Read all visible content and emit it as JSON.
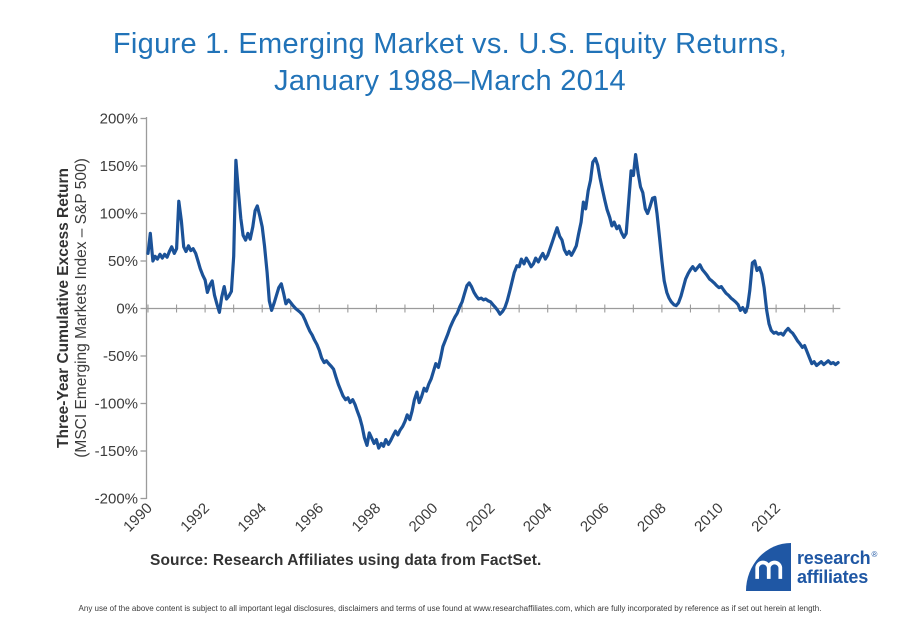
{
  "figure": {
    "title_line1": "Figure 1. Emerging Market vs. U.S. Equity Returns,",
    "title_line2": "January 1988–March 2014",
    "source": "Source: Research Affiliates using data from FactSet.",
    "disclaimer": "Any use of the above content is subject to all important legal disclosures, disclaimers and terms of use found at www.researchaffiliates.com, which are fully incorporated by reference as if set out herein at length.",
    "title_color": "#2173b8"
  },
  "logo": {
    "word1": "research",
    "word2": "affiliates",
    "registered_mark": "®",
    "color": "#1f57a4"
  },
  "chart_data": {
    "type": "line",
    "title": "Figure 1. Emerging Market vs. U.S. Equity Returns, January 1988–March 2014",
    "ylabel_line1": "Three-Year Cumulative Excess Return",
    "ylabel_line2": "(MSCI Emerging Markets Index – S&P 500)",
    "ylim": [
      -200,
      200
    ],
    "y_tick_values": [
      200,
      150,
      100,
      50,
      0,
      -50,
      -100,
      -150,
      -200
    ],
    "y_tick_labels": [
      "200%",
      "150%",
      "100%",
      "50%",
      "0%",
      "-50%",
      "-100%",
      "-150%",
      "-200%"
    ],
    "x_tick_values": [
      1990,
      1992,
      1994,
      1996,
      1998,
      2000,
      2002,
      2004,
      2006,
      2008,
      2010,
      2012
    ],
    "x_tick_labels": [
      "1990",
      "1992",
      "1994",
      "1996",
      "1998",
      "2000",
      "2002",
      "2004",
      "2006",
      "2008",
      "2010",
      "2012"
    ],
    "x_minor_tick_interval": 1,
    "x_range": [
      1990,
      2014.25
    ],
    "grid": "off",
    "legend": "none",
    "line_color": "#1b5298",
    "axis_color": "#9b9b9b",
    "tick_label_color": "#3c3c3c",
    "series": [
      {
        "name": "3-Year Cumulative Excess Return (%), MSCI Emerging Markets Index minus S&P 500",
        "points": [
          [
            1990.0,
            58
          ],
          [
            1990.08,
            79
          ],
          [
            1990.17,
            50
          ],
          [
            1990.25,
            55
          ],
          [
            1990.33,
            52
          ],
          [
            1990.42,
            57
          ],
          [
            1990.5,
            53
          ],
          [
            1990.58,
            57
          ],
          [
            1990.67,
            54
          ],
          [
            1990.75,
            60
          ],
          [
            1990.83,
            65
          ],
          [
            1990.92,
            58
          ],
          [
            1991.0,
            63
          ],
          [
            1991.08,
            113
          ],
          [
            1991.17,
            92
          ],
          [
            1991.25,
            65
          ],
          [
            1991.33,
            60
          ],
          [
            1991.42,
            66
          ],
          [
            1991.5,
            61
          ],
          [
            1991.58,
            63
          ],
          [
            1991.67,
            58
          ],
          [
            1991.75,
            50
          ],
          [
            1991.83,
            42
          ],
          [
            1991.92,
            35
          ],
          [
            1992.0,
            30
          ],
          [
            1992.08,
            17
          ],
          [
            1992.17,
            25
          ],
          [
            1992.25,
            29
          ],
          [
            1992.33,
            14
          ],
          [
            1992.42,
            4
          ],
          [
            1992.5,
            -4
          ],
          [
            1992.58,
            12
          ],
          [
            1992.67,
            23
          ],
          [
            1992.75,
            10
          ],
          [
            1992.83,
            13
          ],
          [
            1992.92,
            18
          ],
          [
            1993.0,
            55
          ],
          [
            1993.08,
            156
          ],
          [
            1993.17,
            122
          ],
          [
            1993.25,
            95
          ],
          [
            1993.33,
            77
          ],
          [
            1993.42,
            72
          ],
          [
            1993.5,
            79
          ],
          [
            1993.58,
            73
          ],
          [
            1993.67,
            86
          ],
          [
            1993.75,
            103
          ],
          [
            1993.83,
            108
          ],
          [
            1993.92,
            97
          ],
          [
            1994.0,
            86
          ],
          [
            1994.08,
            66
          ],
          [
            1994.17,
            38
          ],
          [
            1994.25,
            8
          ],
          [
            1994.33,
            -2
          ],
          [
            1994.42,
            6
          ],
          [
            1994.5,
            14
          ],
          [
            1994.58,
            22
          ],
          [
            1994.67,
            26
          ],
          [
            1994.75,
            16
          ],
          [
            1994.83,
            5
          ],
          [
            1994.92,
            9
          ],
          [
            1995.0,
            6
          ],
          [
            1995.08,
            3
          ],
          [
            1995.17,
            0
          ],
          [
            1995.25,
            -2
          ],
          [
            1995.33,
            -4
          ],
          [
            1995.42,
            -7
          ],
          [
            1995.5,
            -12
          ],
          [
            1995.58,
            -18
          ],
          [
            1995.67,
            -24
          ],
          [
            1995.75,
            -28
          ],
          [
            1995.83,
            -33
          ],
          [
            1995.92,
            -38
          ],
          [
            1996.0,
            -44
          ],
          [
            1996.08,
            -52
          ],
          [
            1996.17,
            -57
          ],
          [
            1996.25,
            -55
          ],
          [
            1996.33,
            -58
          ],
          [
            1996.42,
            -61
          ],
          [
            1996.5,
            -64
          ],
          [
            1996.58,
            -72
          ],
          [
            1996.67,
            -80
          ],
          [
            1996.75,
            -86
          ],
          [
            1996.83,
            -92
          ],
          [
            1996.92,
            -96
          ],
          [
            1997.0,
            -94
          ],
          [
            1997.08,
            -99
          ],
          [
            1997.17,
            -96
          ],
          [
            1997.25,
            -101
          ],
          [
            1997.33,
            -108
          ],
          [
            1997.42,
            -115
          ],
          [
            1997.5,
            -124
          ],
          [
            1997.58,
            -136
          ],
          [
            1997.67,
            -144
          ],
          [
            1997.75,
            -131
          ],
          [
            1997.83,
            -136
          ],
          [
            1997.92,
            -142
          ],
          [
            1998.0,
            -138
          ],
          [
            1998.08,
            -147
          ],
          [
            1998.17,
            -142
          ],
          [
            1998.25,
            -145
          ],
          [
            1998.33,
            -138
          ],
          [
            1998.42,
            -143
          ],
          [
            1998.5,
            -139
          ],
          [
            1998.58,
            -134
          ],
          [
            1998.67,
            -129
          ],
          [
            1998.75,
            -133
          ],
          [
            1998.83,
            -128
          ],
          [
            1998.92,
            -124
          ],
          [
            1999.0,
            -119
          ],
          [
            1999.08,
            -112
          ],
          [
            1999.17,
            -117
          ],
          [
            1999.25,
            -108
          ],
          [
            1999.33,
            -96
          ],
          [
            1999.42,
            -88
          ],
          [
            1999.5,
            -99
          ],
          [
            1999.58,
            -93
          ],
          [
            1999.67,
            -84
          ],
          [
            1999.75,
            -87
          ],
          [
            1999.83,
            -80
          ],
          [
            1999.92,
            -74
          ],
          [
            2000.0,
            -66
          ],
          [
            2000.08,
            -58
          ],
          [
            2000.17,
            -62
          ],
          [
            2000.25,
            -52
          ],
          [
            2000.33,
            -40
          ],
          [
            2000.42,
            -33
          ],
          [
            2000.5,
            -27
          ],
          [
            2000.58,
            -20
          ],
          [
            2000.67,
            -14
          ],
          [
            2000.75,
            -9
          ],
          [
            2000.83,
            -5
          ],
          [
            2000.92,
            2
          ],
          [
            2001.0,
            7
          ],
          [
            2001.08,
            15
          ],
          [
            2001.17,
            24
          ],
          [
            2001.25,
            27
          ],
          [
            2001.33,
            23
          ],
          [
            2001.42,
            17
          ],
          [
            2001.5,
            13
          ],
          [
            2001.58,
            10
          ],
          [
            2001.67,
            11
          ],
          [
            2001.75,
            9
          ],
          [
            2001.83,
            10
          ],
          [
            2001.92,
            8
          ],
          [
            2002.0,
            7
          ],
          [
            2002.08,
            4
          ],
          [
            2002.17,
            1
          ],
          [
            2002.25,
            -2
          ],
          [
            2002.33,
            -6
          ],
          [
            2002.42,
            -3
          ],
          [
            2002.5,
            1
          ],
          [
            2002.58,
            8
          ],
          [
            2002.67,
            18
          ],
          [
            2002.75,
            28
          ],
          [
            2002.83,
            38
          ],
          [
            2002.92,
            45
          ],
          [
            2003.0,
            44
          ],
          [
            2003.08,
            52
          ],
          [
            2003.17,
            47
          ],
          [
            2003.25,
            53
          ],
          [
            2003.33,
            49
          ],
          [
            2003.42,
            44
          ],
          [
            2003.5,
            47
          ],
          [
            2003.58,
            53
          ],
          [
            2003.67,
            49
          ],
          [
            2003.75,
            54
          ],
          [
            2003.83,
            58
          ],
          [
            2003.92,
            52
          ],
          [
            2004.0,
            56
          ],
          [
            2004.08,
            63
          ],
          [
            2004.17,
            71
          ],
          [
            2004.25,
            78
          ],
          [
            2004.33,
            85
          ],
          [
            2004.42,
            76
          ],
          [
            2004.5,
            72
          ],
          [
            2004.58,
            62
          ],
          [
            2004.67,
            57
          ],
          [
            2004.75,
            60
          ],
          [
            2004.83,
            56
          ],
          [
            2004.92,
            61
          ],
          [
            2005.0,
            66
          ],
          [
            2005.08,
            78
          ],
          [
            2005.17,
            91
          ],
          [
            2005.25,
            112
          ],
          [
            2005.33,
            105
          ],
          [
            2005.42,
            124
          ],
          [
            2005.5,
            135
          ],
          [
            2005.58,
            154
          ],
          [
            2005.67,
            158
          ],
          [
            2005.75,
            151
          ],
          [
            2005.83,
            138
          ],
          [
            2005.92,
            125
          ],
          [
            2006.0,
            114
          ],
          [
            2006.08,
            104
          ],
          [
            2006.17,
            96
          ],
          [
            2006.25,
            87
          ],
          [
            2006.33,
            91
          ],
          [
            2006.42,
            84
          ],
          [
            2006.5,
            87
          ],
          [
            2006.58,
            80
          ],
          [
            2006.67,
            75
          ],
          [
            2006.75,
            79
          ],
          [
            2006.83,
            110
          ],
          [
            2006.92,
            145
          ],
          [
            2007.0,
            140
          ],
          [
            2007.08,
            162
          ],
          [
            2007.17,
            142
          ],
          [
            2007.25,
            128
          ],
          [
            2007.33,
            122
          ],
          [
            2007.42,
            105
          ],
          [
            2007.5,
            100
          ],
          [
            2007.58,
            107
          ],
          [
            2007.67,
            116
          ],
          [
            2007.75,
            117
          ],
          [
            2007.83,
            100
          ],
          [
            2007.92,
            74
          ],
          [
            2008.0,
            50
          ],
          [
            2008.08,
            29
          ],
          [
            2008.17,
            17
          ],
          [
            2008.25,
            11
          ],
          [
            2008.33,
            7
          ],
          [
            2008.42,
            4
          ],
          [
            2008.5,
            3
          ],
          [
            2008.58,
            6
          ],
          [
            2008.67,
            13
          ],
          [
            2008.75,
            22
          ],
          [
            2008.83,
            31
          ],
          [
            2008.92,
            37
          ],
          [
            2009.0,
            41
          ],
          [
            2009.08,
            44
          ],
          [
            2009.17,
            40
          ],
          [
            2009.25,
            43
          ],
          [
            2009.33,
            46
          ],
          [
            2009.42,
            41
          ],
          [
            2009.5,
            38
          ],
          [
            2009.58,
            35
          ],
          [
            2009.67,
            31
          ],
          [
            2009.75,
            29
          ],
          [
            2009.83,
            27
          ],
          [
            2009.92,
            24
          ],
          [
            2010.0,
            22
          ],
          [
            2010.08,
            23
          ],
          [
            2010.17,
            19
          ],
          [
            2010.25,
            16
          ],
          [
            2010.33,
            14
          ],
          [
            2010.42,
            11
          ],
          [
            2010.5,
            9
          ],
          [
            2010.58,
            7
          ],
          [
            2010.67,
            4
          ],
          [
            2010.75,
            -2
          ],
          [
            2010.83,
            1
          ],
          [
            2010.92,
            -4
          ],
          [
            2011.0,
            2
          ],
          [
            2011.08,
            19
          ],
          [
            2011.17,
            48
          ],
          [
            2011.25,
            50
          ],
          [
            2011.33,
            40
          ],
          [
            2011.42,
            43
          ],
          [
            2011.5,
            36
          ],
          [
            2011.58,
            22
          ],
          [
            2011.67,
            -2
          ],
          [
            2011.75,
            -16
          ],
          [
            2011.83,
            -23
          ],
          [
            2011.92,
            -26
          ],
          [
            2012.0,
            -25
          ],
          [
            2012.08,
            -27
          ],
          [
            2012.17,
            -26
          ],
          [
            2012.25,
            -28
          ],
          [
            2012.33,
            -24
          ],
          [
            2012.42,
            -21
          ],
          [
            2012.5,
            -24
          ],
          [
            2012.58,
            -26
          ],
          [
            2012.67,
            -30
          ],
          [
            2012.75,
            -34
          ],
          [
            2012.83,
            -37
          ],
          [
            2012.92,
            -41
          ],
          [
            2013.0,
            -39
          ],
          [
            2013.08,
            -45
          ],
          [
            2013.17,
            -52
          ],
          [
            2013.25,
            -58
          ],
          [
            2013.33,
            -56
          ],
          [
            2013.42,
            -60
          ],
          [
            2013.5,
            -58
          ],
          [
            2013.58,
            -56
          ],
          [
            2013.67,
            -59
          ],
          [
            2013.75,
            -57
          ],
          [
            2013.83,
            -55
          ],
          [
            2013.92,
            -58
          ],
          [
            2014.0,
            -57
          ],
          [
            2014.08,
            -59
          ],
          [
            2014.17,
            -57
          ]
        ]
      }
    ]
  }
}
